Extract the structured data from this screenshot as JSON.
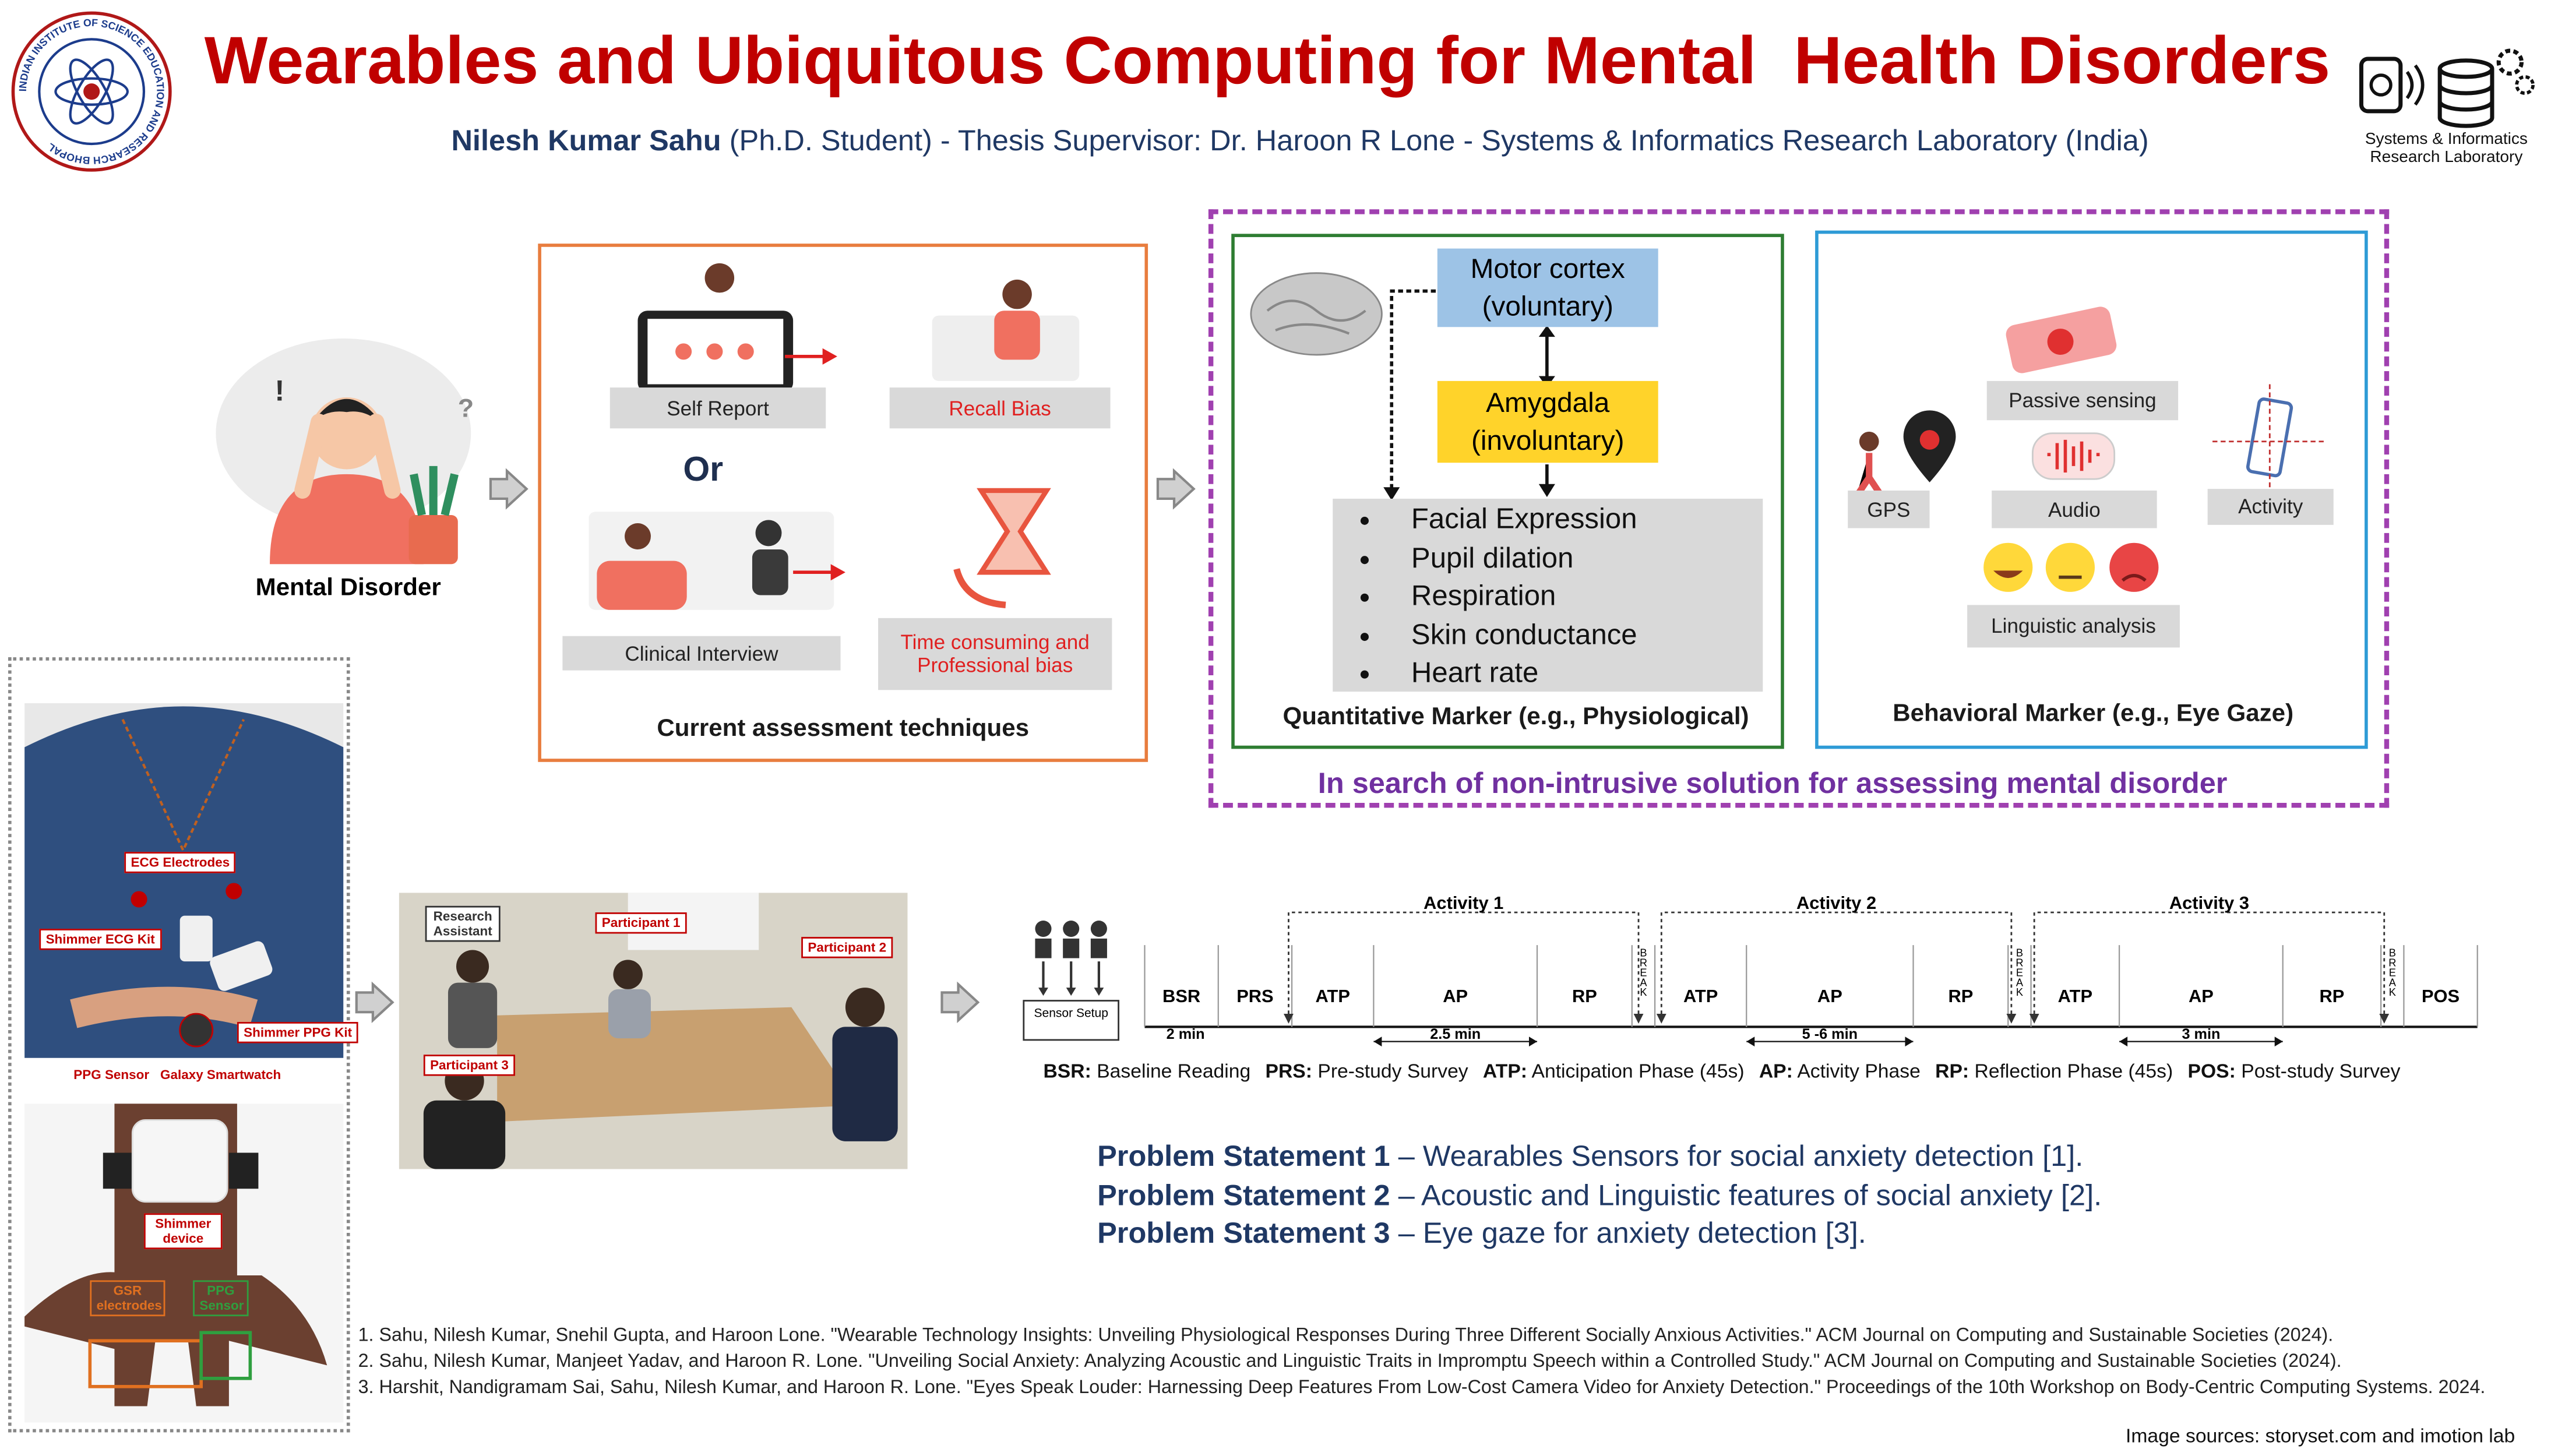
{
  "header": {
    "title": "Wearables and Ubiquitous Computing for Mental  Health Disorders",
    "author": "Nilesh Kumar Sahu",
    "affiliation": "(Ph.D. Student) - Thesis Supervisor: Dr. Haroon R Lone - Systems & Informatics Research Laboratory (India)",
    "institute_seal": "INDIAN INSTITUTE OF SCIENCE EDUCATION AND RESEARCH BHOPAL",
    "lab_logo": "Systems & Informatics Research Laboratory"
  },
  "problem": {
    "label": "Mental Disorder"
  },
  "current_assessment": {
    "self_report": "Self Report",
    "recall_bias": "Recall Bias",
    "or": "Or",
    "clinical_interview": "Clinical Interview",
    "time_bias": "Time consuming and Professional bias",
    "caption": "Current assessment techniques"
  },
  "quantitative_marker": {
    "motor_cortex": "Motor cortex (voluntary)",
    "amygdala": "Amygdala (involuntary)",
    "signals": [
      "Facial Expression",
      "Pupil dilation",
      "Respiration",
      "Skin conductance",
      "Heart rate"
    ],
    "caption": "Quantitative Marker (e.g., Physiological)"
  },
  "behavioral_marker": {
    "passive_sensing": "Passive sensing",
    "gps": "GPS",
    "audio": "Audio",
    "activity": "Activity",
    "linguistic_analysis": "Linguistic analysis",
    "caption": "Behavioral Marker (e.g., Eye Gaze)"
  },
  "search_goal": "In search of non-intrusive solution for assessing mental disorder",
  "sensor_setup": {
    "labels": [
      "ECG Electrodes",
      "Shimmer ECG Kit",
      "Shimmer PPG Kit",
      "PPG Sensor",
      "Galaxy Smartwatch",
      "Shimmer device",
      "GSR electrodes",
      "PPG Sensor"
    ]
  },
  "study_room": {
    "labels": [
      "Research Assistant",
      "Participant 1",
      "Participant 2",
      "Participant 3"
    ]
  },
  "protocol": {
    "sensor_setup": "Sensor Setup",
    "activities": [
      "Activity 1",
      "Activity 2",
      "Activity 3"
    ],
    "phases": [
      "BSR",
      "PRS",
      "ATP",
      "AP",
      "RP",
      "BREAK",
      "ATP",
      "AP",
      "RP",
      "BREAK",
      "ATP",
      "AP",
      "RP",
      "BREAK",
      "POS"
    ],
    "durations": [
      "2 min",
      "2.5 min",
      "5 -6 min",
      "3 min"
    ],
    "legend": [
      {
        "abbr": "BSR:",
        "text": "Baseline Reading"
      },
      {
        "abbr": "PRS:",
        "text": "Pre-study Survey"
      },
      {
        "abbr": "ATP:",
        "text": "Anticipation Phase (45s)"
      },
      {
        "abbr": "AP:",
        "text": "Activity Phase"
      },
      {
        "abbr": "RP:",
        "text": "Reflection Phase (45s)"
      },
      {
        "abbr": "POS:",
        "text": "Post-study Survey"
      }
    ]
  },
  "problem_statements": [
    {
      "label": "Problem Statement 1",
      "text": "– Wearables Sensors for social anxiety detection [1]."
    },
    {
      "label": "Problem Statement 2",
      "text": "– Acoustic and Linguistic features of social anxiety [2]."
    },
    {
      "label": "Problem Statement 3",
      "text": "– Eye gaze for anxiety detection [3]."
    }
  ],
  "references": [
    "1. Sahu, Nilesh Kumar, Snehil Gupta, and Haroon Lone. \"Wearable Technology Insights: Unveiling Physiological Responses During Three Different Socially Anxious Activities.\" ACM Journal on Computing and Sustainable Societies (2024).",
    "2. Sahu, Nilesh Kumar, Manjeet Yadav, and Haroon R. Lone. \"Unveiling Social Anxiety: Analyzing Acoustic and Linguistic Traits in Impromptu Speech within a Controlled Study.\" ACM Journal on Computing and Sustainable Societies (2024).",
    "3. Harshit, Nandigramam Sai, Sahu, Nilesh Kumar, and Haroon R. Lone. \"Eyes Speak Louder: Harnessing Deep Features From Low-Cost Camera Video for Anxiety Detection.\" Proceedings of the 10th Workshop on Body-Centric Computing Systems. 2024."
  ],
  "image_sources": "Image sources: storyset.com and imotion lab"
}
